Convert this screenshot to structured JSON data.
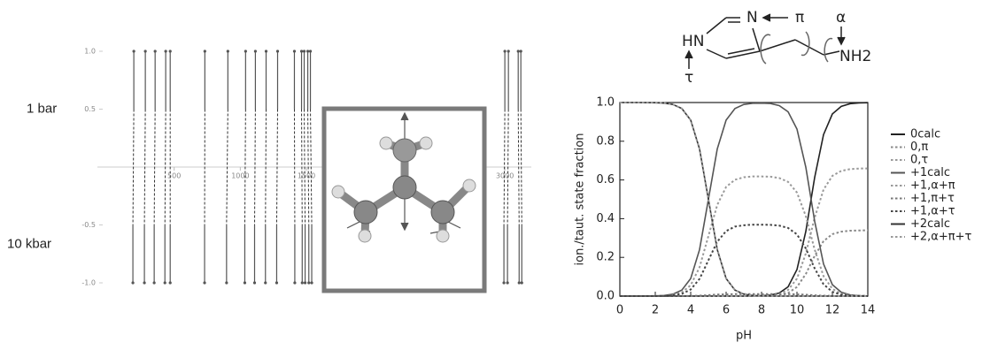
{
  "structure": {
    "labels": [
      "N",
      "π",
      "α",
      "HN",
      "τ",
      "NH2"
    ]
  },
  "chart_data": [
    {
      "type": "stick",
      "xlim": [
        0,
        3200
      ],
      "xticks": [
        500,
        1000,
        1500,
        3000
      ],
      "ylim": [
        -1,
        1
      ],
      "yticks": [
        {
          "value": 1,
          "label": "1.0"
        },
        0.5,
        -0.5,
        {
          "value": -1,
          "label": "-1.0"
        }
      ],
      "series": [
        {
          "name": "1 bar",
          "color": "#555",
          "x": [
            195,
            282,
            356,
            436,
            470,
            732,
            906,
            1040,
            1114,
            1195,
            1282,
            1409,
            1463,
            1483,
            1510,
            1530,
            3000,
            3027,
            3101,
            3121
          ],
          "values": [
            1,
            1,
            1,
            1,
            1,
            1,
            1,
            1,
            1,
            1,
            1,
            1,
            1,
            1,
            1,
            1,
            1,
            1,
            1,
            1
          ]
        },
        {
          "name": "10 kbar",
          "color": "#555",
          "x": [
            188,
            275,
            349,
            430,
            470,
            730,
            896,
            1034,
            1108,
            1190,
            1275,
            1412,
            1468,
            1490,
            1518,
            1540,
            2993,
            3020,
            3108,
            3128
          ],
          "values": [
            -1,
            -1,
            -1,
            -1,
            -1,
            -1,
            -1,
            -1,
            -1,
            -1,
            -1,
            -1,
            -1,
            -1,
            -1,
            -1,
            -1,
            -1,
            -1,
            -1
          ]
        }
      ]
    },
    {
      "type": "line",
      "xlabel": "pH",
      "ylabel": "ion./taut. state fraction",
      "xlim": [
        0,
        14
      ],
      "xticks": [
        0,
        2,
        4,
        6,
        8,
        10,
        12,
        14
      ],
      "ylim": [
        0,
        1
      ],
      "yticks": [
        {
          "value": 0,
          "label": "0.0"
        },
        0.2,
        0.4,
        0.6,
        0.8,
        {
          "value": 1,
          "label": "1.0"
        }
      ],
      "legend": "right",
      "x": [
        0,
        1,
        2,
        2.5,
        3,
        3.5,
        4,
        4.5,
        5,
        5.5,
        6,
        6.5,
        7,
        7.5,
        8,
        8.5,
        9,
        9.5,
        10,
        10.5,
        11,
        11.5,
        12,
        12.5,
        13,
        13.5,
        14
      ],
      "series": [
        {
          "name": "0calc",
          "color": "#222",
          "linestyle": "solid",
          "values": [
            0,
            0,
            0,
            0,
            0,
            0,
            0,
            0,
            0,
            0,
            0,
            0,
            0,
            0.001,
            0.002,
            0.005,
            0.016,
            0.048,
            0.137,
            0.334,
            0.613,
            0.834,
            0.941,
            0.98,
            0.994,
            0.998,
            0.999
          ]
        },
        {
          "name": "0,π",
          "color": "#888",
          "linestyle": "dotted",
          "values": [
            0,
            0,
            0,
            0,
            0,
            0,
            0,
            0,
            0,
            0,
            0,
            0,
            0,
            0,
            0.001,
            0.002,
            0.005,
            0.016,
            0.047,
            0.114,
            0.208,
            0.284,
            0.32,
            0.333,
            0.338,
            0.339,
            0.34
          ]
        },
        {
          "name": "0,τ",
          "color": "#999",
          "linestyle": "dotted",
          "values": [
            0,
            0,
            0,
            0,
            0,
            0,
            0,
            0,
            0,
            0,
            0,
            0,
            0,
            0.001,
            0.001,
            0.003,
            0.011,
            0.032,
            0.09,
            0.22,
            0.405,
            0.55,
            0.621,
            0.647,
            0.656,
            0.659,
            0.659
          ]
        },
        {
          "name": "+1calc",
          "color": "#555",
          "linestyle": "solid",
          "values": [
            0,
            0,
            0.001,
            0.003,
            0.01,
            0.031,
            0.091,
            0.24,
            0.5,
            0.76,
            0.909,
            0.969,
            0.99,
            0.996,
            0.997,
            0.995,
            0.984,
            0.952,
            0.863,
            0.666,
            0.387,
            0.166,
            0.059,
            0.02,
            0.006,
            0.002,
            0.001
          ]
        },
        {
          "name": "+1,α+π",
          "color": "#999",
          "linestyle": "dotted",
          "values": [
            0,
            0,
            0.001,
            0.002,
            0.006,
            0.019,
            0.056,
            0.149,
            0.31,
            0.471,
            0.564,
            0.601,
            0.614,
            0.618,
            0.618,
            0.617,
            0.61,
            0.59,
            0.535,
            0.413,
            0.24,
            0.103,
            0.037,
            0.012,
            0.004,
            0.001,
            0.001
          ]
        },
        {
          "name": "+1,π+τ",
          "color": "#777",
          "linestyle": "dotted",
          "values": [
            0,
            0,
            0,
            0,
            0,
            0,
            0.001,
            0.002,
            0.005,
            0.008,
            0.009,
            0.01,
            0.01,
            0.01,
            0.01,
            0.01,
            0.01,
            0.01,
            0.009,
            0.007,
            0.004,
            0.002,
            0.001,
            0,
            0,
            0,
            0
          ]
        },
        {
          "name": "+1,α+τ",
          "color": "#444",
          "linestyle": "dotted",
          "values": [
            0,
            0,
            0,
            0.001,
            0.004,
            0.011,
            0.034,
            0.089,
            0.185,
            0.281,
            0.336,
            0.359,
            0.366,
            0.369,
            0.369,
            0.368,
            0.364,
            0.352,
            0.319,
            0.246,
            0.143,
            0.061,
            0.022,
            0.007,
            0.002,
            0.001,
            0
          ]
        },
        {
          "name": "+2calc",
          "color": "#333",
          "linestyle": "solid",
          "values": [
            1,
            1,
            0.999,
            0.997,
            0.99,
            0.969,
            0.909,
            0.76,
            0.5,
            0.24,
            0.091,
            0.031,
            0.01,
            0.003,
            0.001,
            0,
            0,
            0,
            0,
            0,
            0,
            0,
            0,
            0,
            0,
            0,
            0
          ]
        },
        {
          "name": "+2,α+π+τ",
          "color": "#999",
          "linestyle": "dotted",
          "values": [
            1,
            1,
            0.999,
            0.997,
            0.99,
            0.969,
            0.909,
            0.76,
            0.5,
            0.24,
            0.091,
            0.031,
            0.01,
            0.003,
            0.001,
            0,
            0,
            0,
            0,
            0,
            0,
            0,
            0,
            0,
            0,
            0,
            0
          ]
        }
      ]
    }
  ]
}
